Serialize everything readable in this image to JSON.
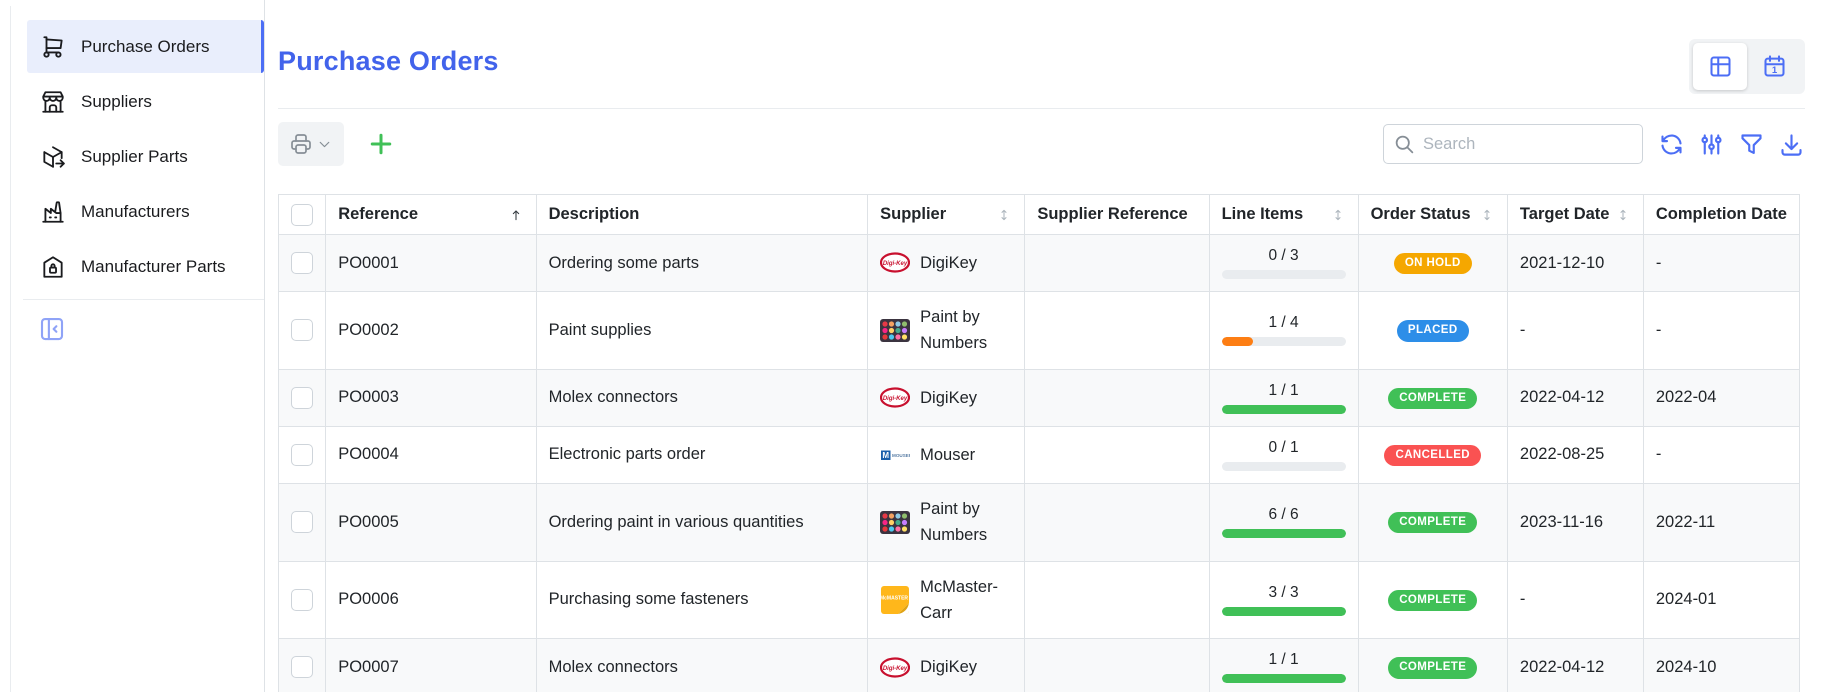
{
  "sidebar": {
    "items": [
      {
        "label": "Purchase Orders",
        "icon": "shopping-cart-icon",
        "active": true
      },
      {
        "label": "Suppliers",
        "icon": "storefront-icon",
        "active": false
      },
      {
        "label": "Supplier Parts",
        "icon": "package-export-icon",
        "active": false
      },
      {
        "label": "Manufacturers",
        "icon": "factory-icon",
        "active": false
      },
      {
        "label": "Manufacturer Parts",
        "icon": "warehouse-lock-icon",
        "active": false
      }
    ]
  },
  "header": {
    "title": "Purchase Orders"
  },
  "view_toggle": {
    "options": [
      {
        "icon": "table-view-icon",
        "active": true
      },
      {
        "icon": "calendar-view-icon",
        "active": false,
        "day_label": "1"
      }
    ]
  },
  "toolbar": {
    "print_icon": "printer-icon",
    "add_icon": "plus-icon",
    "search_placeholder": "Search",
    "search_value": "",
    "action_icons": [
      "refresh-icon",
      "adjustments-icon",
      "filter-icon",
      "download-icon"
    ]
  },
  "table": {
    "columns": [
      {
        "label": "",
        "type": "checkbox",
        "sort": null
      },
      {
        "label": "Reference",
        "sort": "asc"
      },
      {
        "label": "Description",
        "sort": null
      },
      {
        "label": "Supplier",
        "sort": "both"
      },
      {
        "label": "Supplier Reference",
        "sort": null
      },
      {
        "label": "Line Items",
        "sort": "both"
      },
      {
        "label": "Order Status",
        "sort": "both"
      },
      {
        "label": "Target Date",
        "sort": "both"
      },
      {
        "label": "Completion Date",
        "sort": null
      }
    ],
    "rows": [
      {
        "reference": "PO0001",
        "description": "Ordering some parts",
        "supplier": {
          "name": "DigiKey",
          "logo": "digikey-logo"
        },
        "supplier_reference": "",
        "line_items": {
          "completed": 0,
          "total": 3,
          "percent": 0,
          "color": "#e9ecef"
        },
        "status": {
          "label": "ON HOLD",
          "color": "#f5a700"
        },
        "target_date": "2021-12-10",
        "completion_date": "-"
      },
      {
        "reference": "PO0002",
        "description": "Paint supplies",
        "supplier": {
          "name": "Paint by Numbers",
          "logo": "paint-by-numbers-logo"
        },
        "supplier_reference": "",
        "line_items": {
          "completed": 1,
          "total": 4,
          "percent": 25,
          "color": "#fd7e14"
        },
        "status": {
          "label": "PLACED",
          "color": "#2d8ee8"
        },
        "target_date": "-",
        "completion_date": "-"
      },
      {
        "reference": "PO0003",
        "description": "Molex connectors",
        "supplier": {
          "name": "DigiKey",
          "logo": "digikey-logo"
        },
        "supplier_reference": "",
        "line_items": {
          "completed": 1,
          "total": 1,
          "percent": 100,
          "color": "#40c057"
        },
        "status": {
          "label": "COMPLETE",
          "color": "#40c057"
        },
        "target_date": "2022-04-12",
        "completion_date": "2022-04"
      },
      {
        "reference": "PO0004",
        "description": "Electronic parts order",
        "supplier": {
          "name": "Mouser",
          "logo": "mouser-logo"
        },
        "supplier_reference": "",
        "line_items": {
          "completed": 0,
          "total": 1,
          "percent": 0,
          "color": "#e9ecef"
        },
        "status": {
          "label": "CANCELLED",
          "color": "#fa5252"
        },
        "target_date": "2022-08-25",
        "completion_date": "-"
      },
      {
        "reference": "PO0005",
        "description": "Ordering paint in various quantities",
        "supplier": {
          "name": "Paint by Numbers",
          "logo": "paint-by-numbers-logo"
        },
        "supplier_reference": "",
        "line_items": {
          "completed": 6,
          "total": 6,
          "percent": 100,
          "color": "#40c057"
        },
        "status": {
          "label": "COMPLETE",
          "color": "#40c057"
        },
        "target_date": "2023-11-16",
        "completion_date": "2022-11"
      },
      {
        "reference": "PO0006",
        "description": "Purchasing some fasteners",
        "supplier": {
          "name": "McMaster-Carr",
          "logo": "mcmaster-carr-logo"
        },
        "supplier_reference": "",
        "line_items": {
          "completed": 3,
          "total": 3,
          "percent": 100,
          "color": "#40c057"
        },
        "status": {
          "label": "COMPLETE",
          "color": "#40c057"
        },
        "target_date": "-",
        "completion_date": "2024-01"
      },
      {
        "reference": "PO0007",
        "description": "Molex connectors",
        "supplier": {
          "name": "DigiKey",
          "logo": "digikey-logo"
        },
        "supplier_reference": "",
        "line_items": {
          "completed": 1,
          "total": 1,
          "percent": 100,
          "color": "#40c057"
        },
        "status": {
          "label": "COMPLETE",
          "color": "#40c057"
        },
        "target_date": "2022-04-12",
        "completion_date": "2024-10"
      }
    ]
  },
  "colors": {
    "accent": "#4c6ef5",
    "title_blue": "#4263eb",
    "add_green": "#40c057",
    "stripe": "#f8f9fa",
    "status_on_hold": "#f5a700",
    "status_placed": "#2d8ee8",
    "status_complete": "#40c057",
    "status_cancelled": "#fa5252",
    "progress_orange": "#fd7e14",
    "progress_green": "#40c057"
  }
}
